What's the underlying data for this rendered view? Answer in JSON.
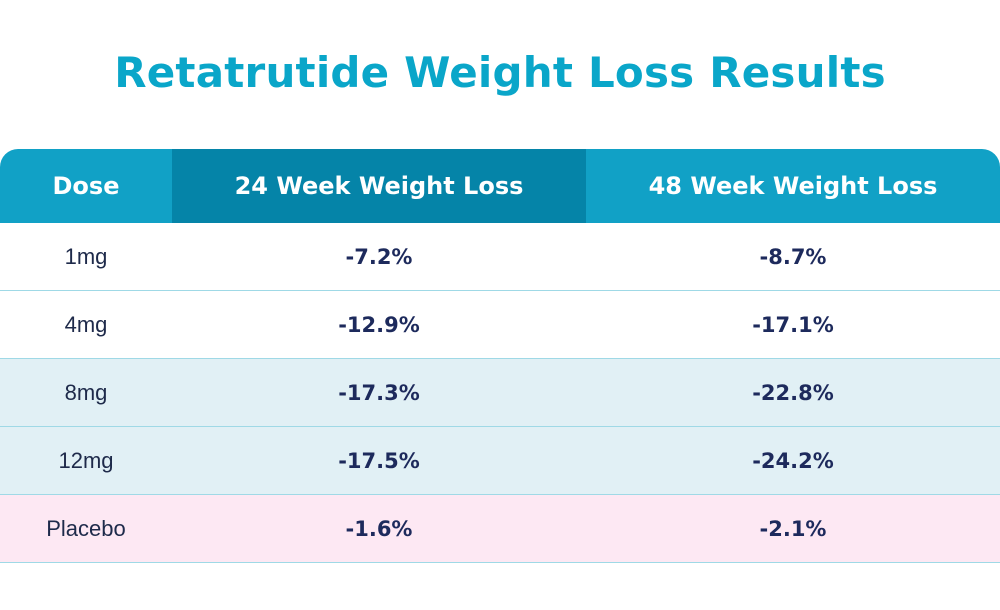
{
  "title": "Retatrutide Weight Loss Results",
  "colors": {
    "title": "#0aa6c9",
    "header_bg": "#11a1c6",
    "header_highlight": "#0584a8",
    "row_white": "#ffffff",
    "row_blue": "#e1f0f5",
    "row_pink": "#fde8f3",
    "value_text": "#1d2a5c"
  },
  "chart_data": {
    "type": "table",
    "title": "Retatrutide Weight Loss Results",
    "columns": [
      "Dose",
      "24 Week Weight Loss",
      "48 Week Weight Loss"
    ],
    "rows": [
      {
        "dose": "1mg",
        "w24": "-7.2%",
        "w48": "-8.7%",
        "shade": "white"
      },
      {
        "dose": "4mg",
        "w24": "-12.9%",
        "w48": "-17.1%",
        "shade": "white"
      },
      {
        "dose": "8mg",
        "w24": "-17.3%",
        "w48": "-22.8%",
        "shade": "blue"
      },
      {
        "dose": "12mg",
        "w24": "-17.5%",
        "w48": "-24.2%",
        "shade": "blue"
      },
      {
        "dose": "Placebo",
        "w24": "-1.6%",
        "w48": "-2.1%",
        "shade": "pink"
      }
    ]
  }
}
